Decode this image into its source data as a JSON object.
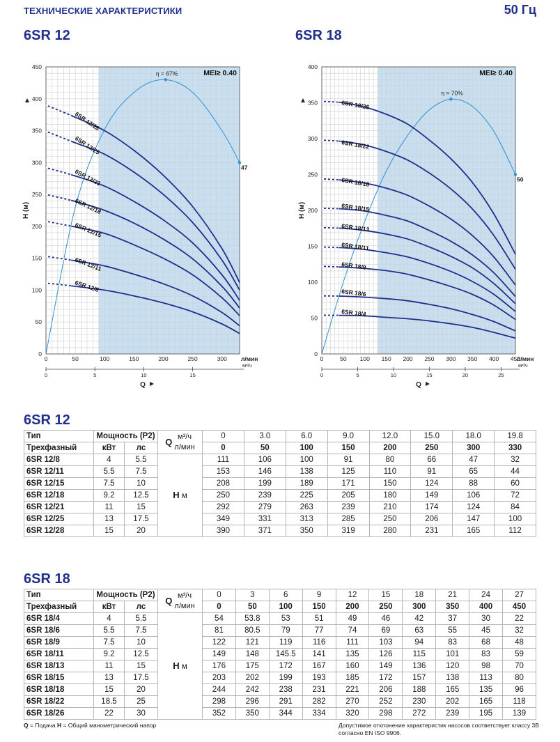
{
  "header": {
    "title": "ТЕХНИЧЕСКИЕ ХАРАКТЕРИСТИКИ",
    "frequency": "50 Гц"
  },
  "chart_data": [
    {
      "type": "line",
      "title": "6SR 12",
      "ylabel": "H (м)",
      "xlabel": "Q",
      "x_unit_primary": "л/мин",
      "x_unit_secondary": "м³/ч",
      "ylim": [
        0,
        450
      ],
      "xlim": [
        0,
        330
      ],
      "y_ticks": [
        "0",
        "50",
        "100",
        "150",
        "200",
        "250",
        "300",
        "350",
        "400",
        "450"
      ],
      "x_ticks_primary": [
        "0",
        "50",
        "100",
        "150",
        "200",
        "250",
        "300"
      ],
      "x_ticks_secondary": [
        "0",
        "5",
        "10",
        "15"
      ],
      "x_ticks_secondary_values": [
        0,
        83.33,
        166.67,
        250
      ],
      "mei_label": "MEI≥ 0.40",
      "efficiency_label": "η = 67%",
      "efficiency_end_label": "47",
      "efficiency_curve": {
        "x": [
          0,
          50,
          100,
          150,
          200,
          250,
          300,
          330
        ],
        "y": [
          0,
          230,
          352,
          410,
          430,
          410,
          350,
          300
        ]
      },
      "efficiency_peak": [
        204,
        430
      ],
      "efficiency_end": [
        330,
        300
      ],
      "preferred_range": [
        90,
        330
      ],
      "x": [
        0,
        50,
        100,
        150,
        200,
        250,
        300,
        330
      ],
      "series": [
        {
          "name": "6SR 12/8",
          "values": [
            111,
            106,
            100,
            91,
            80,
            66,
            47,
            32
          ]
        },
        {
          "name": "6SR 12/11",
          "values": [
            153,
            146,
            138,
            125,
            110,
            91,
            65,
            44
          ]
        },
        {
          "name": "6SR 12/15",
          "values": [
            208,
            199,
            189,
            171,
            150,
            124,
            88,
            60
          ]
        },
        {
          "name": "6SR 12/18",
          "values": [
            250,
            239,
            225,
            205,
            180,
            149,
            106,
            72
          ]
        },
        {
          "name": "6SR 12/21",
          "values": [
            292,
            279,
            263,
            239,
            210,
            174,
            124,
            84
          ]
        },
        {
          "name": "6SR 12/25",
          "values": [
            349,
            331,
            313,
            285,
            250,
            206,
            147,
            100
          ]
        },
        {
          "name": "6SR 12/28",
          "values": [
            390,
            371,
            350,
            319,
            280,
            231,
            165,
            112
          ]
        }
      ]
    },
    {
      "type": "line",
      "title": "6SR 18",
      "ylabel": "H (м)",
      "xlabel": "Q",
      "x_unit_primary": "л/мин",
      "x_unit_secondary": "м³/ч",
      "ylim": [
        0,
        400
      ],
      "xlim": [
        0,
        450
      ],
      "y_ticks": [
        "0",
        "50",
        "100",
        "150",
        "200",
        "250",
        "300",
        "350",
        "400"
      ],
      "x_ticks_primary": [
        "0",
        "50",
        "100",
        "150",
        "200",
        "250",
        "300",
        "350",
        "400",
        "450"
      ],
      "x_ticks_secondary": [
        "0",
        "5",
        "10",
        "15",
        "20",
        "25"
      ],
      "x_ticks_secondary_values": [
        0,
        83.33,
        166.67,
        250,
        333.33,
        416.67
      ],
      "mei_label": "MEI≥ 0.40",
      "efficiency_label": "η = 70%",
      "efficiency_end_label": "50",
      "efficiency_curve": {
        "x": [
          0,
          50,
          100,
          150,
          200,
          250,
          300,
          350,
          400,
          450
        ],
        "y": [
          0,
          100,
          185,
          255,
          305,
          340,
          355,
          345,
          310,
          250
        ]
      },
      "efficiency_peak": [
        300,
        355
      ],
      "efficiency_end": [
        450,
        250
      ],
      "preferred_range": [
        130,
        450
      ],
      "x": [
        0,
        50,
        100,
        150,
        200,
        250,
        300,
        350,
        400,
        450
      ],
      "series": [
        {
          "name": "6SR 18/4",
          "values": [
            54,
            53.8,
            53,
            51,
            49,
            46,
            42,
            37,
            30,
            22
          ]
        },
        {
          "name": "6SR 18/6",
          "values": [
            81,
            80.5,
            79,
            77,
            74,
            69,
            63,
            55,
            45,
            32
          ]
        },
        {
          "name": "6SR 18/9",
          "values": [
            122,
            121,
            119,
            116,
            111,
            103,
            94,
            83,
            68,
            48
          ]
        },
        {
          "name": "6SR 18/11",
          "values": [
            149,
            148,
            145.5,
            141,
            135,
            126,
            115,
            101,
            83,
            59
          ]
        },
        {
          "name": "6SR 18/13",
          "values": [
            176,
            175,
            172,
            167,
            160,
            149,
            136,
            120,
            98,
            70
          ]
        },
        {
          "name": "6SR 18/15",
          "values": [
            203,
            202,
            199,
            193,
            185,
            172,
            157,
            138,
            113,
            80
          ]
        },
        {
          "name": "6SR 18/18",
          "values": [
            244,
            242,
            238,
            231,
            221,
            206,
            188,
            165,
            135,
            96
          ]
        },
        {
          "name": "6SR 18/22",
          "values": [
            298,
            296,
            291,
            282,
            270,
            252,
            230,
            202,
            165,
            118
          ]
        },
        {
          "name": "6SR 18/26",
          "values": [
            352,
            350,
            344,
            334,
            320,
            298,
            272,
            239,
            195,
            139
          ]
        }
      ]
    }
  ],
  "tables": [
    {
      "title": "6SR 12",
      "type_label": "Тип",
      "three_phase_label": "Трехфазный",
      "power_label": "Мощность (P2)",
      "kw_label": "кВт",
      "hp_label": "лс",
      "q_label": "Q",
      "q_unit_m3": "м³/ч",
      "q_unit_lmin": "л/мин",
      "h_label": "H",
      "h_unit": "м",
      "q_m3h": [
        "0",
        "3.0",
        "6.0",
        "9.0",
        "12.0",
        "15.0",
        "18.0",
        "19.8"
      ],
      "q_lmin": [
        "0",
        "50",
        "100",
        "150",
        "200",
        "250",
        "300",
        "330"
      ],
      "rows": [
        {
          "name": "6SR 12/8",
          "kw": "4",
          "hp": "5.5",
          "h": [
            "111",
            "106",
            "100",
            "91",
            "80",
            "66",
            "47",
            "32"
          ]
        },
        {
          "name": "6SR 12/11",
          "kw": "5.5",
          "hp": "7.5",
          "h": [
            "153",
            "146",
            "138",
            "125",
            "110",
            "91",
            "65",
            "44"
          ]
        },
        {
          "name": "6SR 12/15",
          "kw": "7.5",
          "hp": "10",
          "h": [
            "208",
            "199",
            "189",
            "171",
            "150",
            "124",
            "88",
            "60"
          ]
        },
        {
          "name": "6SR 12/18",
          "kw": "9.2",
          "hp": "12.5",
          "h": [
            "250",
            "239",
            "225",
            "205",
            "180",
            "149",
            "106",
            "72"
          ]
        },
        {
          "name": "6SR 12/21",
          "kw": "11",
          "hp": "15",
          "h": [
            "292",
            "279",
            "263",
            "239",
            "210",
            "174",
            "124",
            "84"
          ]
        },
        {
          "name": "6SR 12/25",
          "kw": "13",
          "hp": "17.5",
          "h": [
            "349",
            "331",
            "313",
            "285",
            "250",
            "206",
            "147",
            "100"
          ]
        },
        {
          "name": "6SR 12/28",
          "kw": "15",
          "hp": "20",
          "h": [
            "390",
            "371",
            "350",
            "319",
            "280",
            "231",
            "165",
            "112"
          ]
        }
      ]
    },
    {
      "title": "6SR 18",
      "type_label": "Тип",
      "three_phase_label": "Трехфазный",
      "power_label": "Мощность (P2)",
      "kw_label": "кВт",
      "hp_label": "лс",
      "q_label": "Q",
      "q_unit_m3": "м³/ч",
      "q_unit_lmin": "л/мин",
      "h_label": "H",
      "h_unit": "м",
      "q_m3h": [
        "0",
        "3",
        "6",
        "9",
        "12",
        "15",
        "18",
        "21",
        "24",
        "27"
      ],
      "q_lmin": [
        "0",
        "50",
        "100",
        "150",
        "200",
        "250",
        "300",
        "350",
        "400",
        "450"
      ],
      "rows": [
        {
          "name": "6SR 18/4",
          "kw": "4",
          "hp": "5.5",
          "h": [
            "54",
            "53.8",
            "53",
            "51",
            "49",
            "46",
            "42",
            "37",
            "30",
            "22"
          ]
        },
        {
          "name": "6SR 18/6",
          "kw": "5.5",
          "hp": "7.5",
          "h": [
            "81",
            "80.5",
            "79",
            "77",
            "74",
            "69",
            "63",
            "55",
            "45",
            "32"
          ]
        },
        {
          "name": "6SR 18/9",
          "kw": "7.5",
          "hp": "10",
          "h": [
            "122",
            "121",
            "119",
            "116",
            "111",
            "103",
            "94",
            "83",
            "68",
            "48"
          ]
        },
        {
          "name": "6SR 18/11",
          "kw": "9.2",
          "hp": "12.5",
          "h": [
            "149",
            "148",
            "145.5",
            "141",
            "135",
            "126",
            "115",
            "101",
            "83",
            "59"
          ]
        },
        {
          "name": "6SR 18/13",
          "kw": "11",
          "hp": "15",
          "h": [
            "176",
            "175",
            "172",
            "167",
            "160",
            "149",
            "136",
            "120",
            "98",
            "70"
          ]
        },
        {
          "name": "6SR 18/15",
          "kw": "13",
          "hp": "17.5",
          "h": [
            "203",
            "202",
            "199",
            "193",
            "185",
            "172",
            "157",
            "138",
            "113",
            "80"
          ]
        },
        {
          "name": "6SR 18/18",
          "kw": "15",
          "hp": "20",
          "h": [
            "244",
            "242",
            "238",
            "231",
            "221",
            "206",
            "188",
            "165",
            "135",
            "96"
          ]
        },
        {
          "name": "6SR 18/22",
          "kw": "18.5",
          "hp": "25",
          "h": [
            "298",
            "296",
            "291",
            "282",
            "270",
            "252",
            "230",
            "202",
            "165",
            "118"
          ]
        },
        {
          "name": "6SR 18/26",
          "kw": "22",
          "hp": "30",
          "h": [
            "352",
            "350",
            "344",
            "334",
            "320",
            "298",
            "272",
            "239",
            "195",
            "139"
          ]
        }
      ]
    }
  ],
  "footer": {
    "legend_q": "Q",
    "legend_q_text": " = Подача ",
    "legend_h": "H",
    "legend_h_text": " = Общий манометрический напор",
    "note": "Допустимое отклонение характеристик насосов соответствует классу 3В согласно EN ISO 9906."
  },
  "colors": {
    "accent": "#1f2f8c",
    "curve": "#1f2f8c",
    "efficiency": "#2f8fd0",
    "band": "#c7dff0",
    "grid": "#cfcfcf"
  }
}
